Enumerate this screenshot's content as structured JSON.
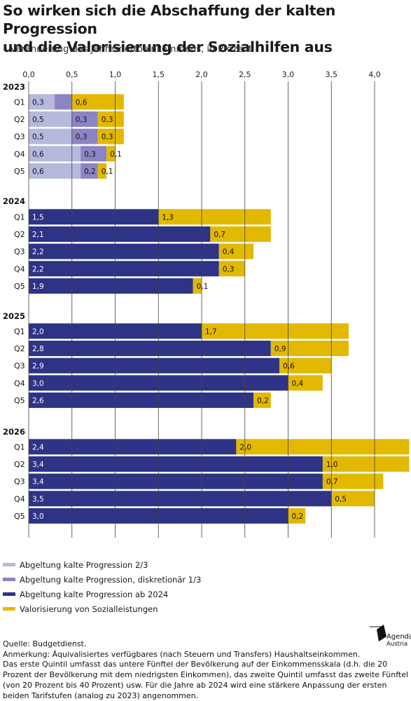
{
  "title_line1": "So wirken sich die Abschaffung der kalten Progression",
  "title_line2": "und die Valorisierung der Sozialhilfen aus",
  "subtitle": "– Veränderung des Jahresnettoeinkommens, in Prozent",
  "colors": {
    "light": "#b5b9dc",
    "mid": "#8c85c4",
    "dark": "#2e3386",
    "yellow": "#e3b800",
    "grid": "#444444"
  },
  "legend": [
    {
      "label": "Abgeltung kalte Progression 2/3",
      "color": "#b5b9dc"
    },
    {
      "label": "Abgeltung kalte Progression, diskretionär 1/3",
      "color": "#8c85c4"
    },
    {
      "label": "Abgeltung kalte Progression ab 2024",
      "color": "#2e3386"
    },
    {
      "label": "Valorisierung von Sozialleistungen",
      "color": "#e3b800"
    }
  ],
  "notes": [
    "Quelle: Budgetdienst.",
    "Anmerkung: Äquivalisiertes verfügbares (nach Steuern und Transfers) Haushaltseinkommen.",
    "Das erste Quintil umfasst das untere Fünftel der Bevölkerung auf der Einkommensskala (d.h. die 20",
    "Prozent der Bevölkerung mit dem niedrigsten Einkommen), das zweite Quintil umfasst das zweite Fünftel",
    "(von 20 Prozent bis 40 Prozent) usw. Für die Jahre ab 2024 wird eine stärkere Anpassung der ersten",
    "beiden Tarifstufen (analog zu 2023) angenommen."
  ],
  "logo": {
    "line1": "Agenda",
    "line2": "Austria"
  },
  "chart_data": {
    "type": "bar",
    "orientation": "horizontal-stacked",
    "xlim": [
      0,
      4.0
    ],
    "x_ticks": [
      "0,0",
      "0,5",
      "1,0",
      "1,5",
      "2,0",
      "2,5",
      "3,0",
      "3,5",
      "4,0"
    ],
    "grid": "vertical",
    "legend_position": "bottom",
    "groups": [
      {
        "year": "2023",
        "rows": [
          {
            "label": "Q1",
            "segments": [
              {
                "series": "light",
                "value": 0.3
              },
              {
                "series": "mid",
                "value": 0.2,
                "label": ""
              },
              {
                "series": "yellow",
                "value": 0.6
              }
            ]
          },
          {
            "label": "Q2",
            "segments": [
              {
                "series": "light",
                "value": 0.5
              },
              {
                "series": "mid",
                "value": 0.3
              },
              {
                "series": "yellow",
                "value": 0.3
              }
            ]
          },
          {
            "label": "Q3",
            "segments": [
              {
                "series": "light",
                "value": 0.5
              },
              {
                "series": "mid",
                "value": 0.3
              },
              {
                "series": "yellow",
                "value": 0.3
              }
            ]
          },
          {
            "label": "Q4",
            "segments": [
              {
                "series": "light",
                "value": 0.6
              },
              {
                "series": "mid",
                "value": 0.3
              },
              {
                "series": "yellow",
                "value": 0.1
              }
            ]
          },
          {
            "label": "Q5",
            "segments": [
              {
                "series": "light",
                "value": 0.6
              },
              {
                "series": "mid",
                "value": 0.2
              },
              {
                "series": "yellow",
                "value": 0.1
              }
            ]
          }
        ]
      },
      {
        "year": "2024",
        "rows": [
          {
            "label": "Q1",
            "segments": [
              {
                "series": "dark",
                "value": 1.5
              },
              {
                "series": "yellow",
                "value": 1.3
              }
            ]
          },
          {
            "label": "Q2",
            "segments": [
              {
                "series": "dark",
                "value": 2.1
              },
              {
                "series": "yellow",
                "value": 0.7
              }
            ]
          },
          {
            "label": "Q3",
            "segments": [
              {
                "series": "dark",
                "value": 2.2
              },
              {
                "series": "yellow",
                "value": 0.4
              }
            ]
          },
          {
            "label": "Q4",
            "segments": [
              {
                "series": "dark",
                "value": 2.2
              },
              {
                "series": "yellow",
                "value": 0.3
              }
            ]
          },
          {
            "label": "Q5",
            "segments": [
              {
                "series": "dark",
                "value": 1.9
              },
              {
                "series": "yellow",
                "value": 0.1
              }
            ]
          }
        ]
      },
      {
        "year": "2025",
        "rows": [
          {
            "label": "Q1",
            "segments": [
              {
                "series": "dark",
                "value": 2.0
              },
              {
                "series": "yellow",
                "value": 1.7
              }
            ]
          },
          {
            "label": "Q2",
            "segments": [
              {
                "series": "dark",
                "value": 2.8
              },
              {
                "series": "yellow",
                "value": 0.9
              }
            ]
          },
          {
            "label": "Q3",
            "segments": [
              {
                "series": "dark",
                "value": 2.9
              },
              {
                "series": "yellow",
                "value": 0.6
              }
            ]
          },
          {
            "label": "Q4",
            "segments": [
              {
                "series": "dark",
                "value": 3.0
              },
              {
                "series": "yellow",
                "value": 0.4
              }
            ]
          },
          {
            "label": "Q5",
            "segments": [
              {
                "series": "dark",
                "value": 2.6
              },
              {
                "series": "yellow",
                "value": 0.2
              }
            ]
          }
        ]
      },
      {
        "year": "2026",
        "rows": [
          {
            "label": "Q1",
            "segments": [
              {
                "series": "dark",
                "value": 2.4
              },
              {
                "series": "yellow",
                "value": 2.0
              }
            ]
          },
          {
            "label": "Q2",
            "segments": [
              {
                "series": "dark",
                "value": 3.4
              },
              {
                "series": "yellow",
                "value": 1.0
              }
            ]
          },
          {
            "label": "Q3",
            "segments": [
              {
                "series": "dark",
                "value": 3.4
              },
              {
                "series": "yellow",
                "value": 0.7
              }
            ]
          },
          {
            "label": "Q4",
            "segments": [
              {
                "series": "dark",
                "value": 3.5
              },
              {
                "series": "yellow",
                "value": 0.5
              }
            ]
          },
          {
            "label": "Q5",
            "segments": [
              {
                "series": "dark",
                "value": 3.0
              },
              {
                "series": "yellow",
                "value": 0.2
              }
            ]
          }
        ]
      }
    ]
  }
}
